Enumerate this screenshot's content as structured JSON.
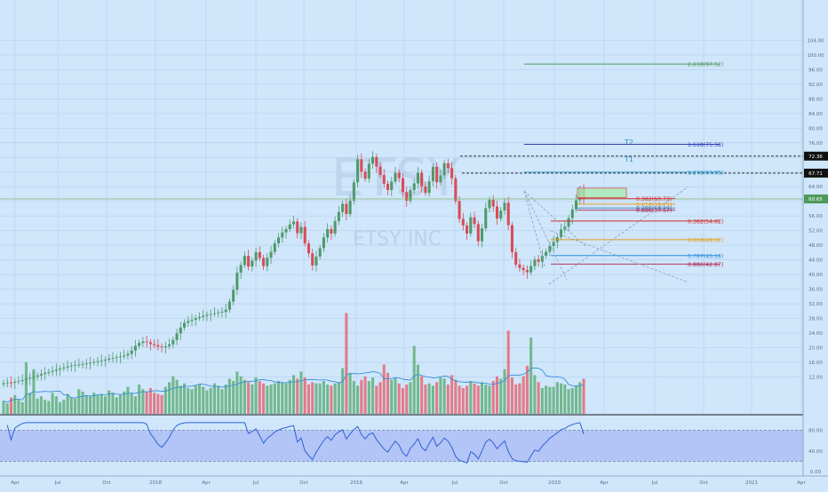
{
  "watermark": {
    "ticker": "ETSY",
    "name": "ETSY INC"
  },
  "colors": {
    "up": "#4f9a6a",
    "down": "#d94b57",
    "background": "#cfe6fb",
    "grid": "#b8d3ec",
    "ma": "#3a8fd6",
    "rsi": "#2f63d2",
    "rsi_band": "#a9b8f6"
  },
  "price_labels": [
    {
      "value": "72.36",
      "price": 72.36,
      "style": "dark"
    },
    {
      "value": "67.71",
      "price": 67.71,
      "style": "dark"
    },
    {
      "value": "60.65",
      "price": 60.65,
      "style": "green"
    }
  ],
  "chart_data": {
    "type": "candlestick",
    "axes": {
      "y_ticks": [
        "104.00",
        "100.00",
        "96.00",
        "92.00",
        "88.00",
        "84.00",
        "80.00",
        "76.00",
        "72.00",
        "68.00",
        "64.00",
        "60.00",
        "56.00",
        "52.00",
        "48.00",
        "44.00",
        "40.00",
        "36.00",
        "32.00",
        "28.00",
        "24.00",
        "20.00",
        "16.00",
        "12.00"
      ],
      "x_ticks": [
        "Apr",
        "Jul",
        "Oct",
        "2018",
        "Apr",
        "Jul",
        "Oct",
        "2019",
        "Apr",
        "Jul",
        "Oct",
        "2020",
        "Apr",
        "Jul",
        "Oct",
        "2021",
        "Apr"
      ],
      "rsi_ticks": [
        "80.00",
        "40.00",
        "0.00"
      ],
      "ylim": [
        8,
        106
      ]
    },
    "weekly_close": [
      10.3,
      10.5,
      10.4,
      10.7,
      10.9,
      11.2,
      11.5,
      11.8,
      12.1,
      12.4,
      12.8,
      13.1,
      13.4,
      13.7,
      14,
      14.3,
      14.6,
      14.9,
      15.1,
      15.3,
      15.4,
      15.5,
      15.7,
      15.9,
      16.1,
      16.3,
      16.5,
      16.7,
      17,
      17.2,
      17.4,
      17.6,
      17.9,
      18.3,
      19.2,
      20.5,
      21.3,
      21.7,
      21.5,
      21,
      20.7,
      20.3,
      20.1,
      20.4,
      20.9,
      22.1,
      23.9,
      25.5,
      26.8,
      27.3,
      27.6,
      28.1,
      28.4,
      28.7,
      29,
      29.2,
      29.4,
      29.6,
      29.8,
      30.4,
      32.6,
      35.8,
      40.5,
      42.6,
      45.1,
      42.2,
      43.8,
      46.1,
      44.5,
      42.3,
      44.6,
      46.2,
      48.5,
      50.1,
      51.5,
      52.4,
      53.7,
      54.5,
      51.3,
      53,
      48.5,
      45.8,
      42.5,
      44.9,
      47.2,
      50.1,
      52.4,
      51.2,
      54.6,
      57.1,
      59.3,
      56.5,
      60.2,
      65.2,
      71.5,
      68.1,
      66.2,
      70.3,
      72.1,
      69.5,
      67.2,
      64.8,
      63.1,
      65.4,
      67.8,
      66.3,
      62.5,
      60.2,
      63.1,
      64.9,
      67.8,
      64.1,
      62.3,
      65.5,
      69.4,
      65.2,
      67.1,
      70.4,
      69.1,
      66.3,
      60.1,
      55.2,
      53.4,
      51.2,
      55.6,
      53.8,
      49.1,
      52.6,
      58.1,
      60.4,
      58.6,
      55.3,
      57.5,
      59.6,
      53.5,
      46.1,
      42.7,
      41.8,
      41.2,
      40.6,
      42.3,
      44.1,
      43.5,
      45.1,
      46.2,
      47.8,
      48.9,
      50.2,
      52.3,
      53.1,
      55.4,
      57.8,
      60.3,
      63.4,
      60.7
    ],
    "weekly_volume": [
      1.1,
      0.9,
      1.4,
      1.6,
      1.2,
      1,
      4.4,
      1.8,
      3.8,
      1.3,
      1.5,
      1.2,
      1.1,
      1.8,
      1.5,
      1,
      1.2,
      1.7,
      1.4,
      1.3,
      2.1,
      1.9,
      1.6,
      1.5,
      1.8,
      1.6,
      1.7,
      1.5,
      2,
      1.8,
      1.4,
      1.6,
      1.9,
      2.3,
      1.8,
      1.5,
      2.5,
      2.1,
      1.9,
      2.2,
      1.8,
      1.7,
      1.6,
      2.3,
      2.7,
      3.2,
      2.9,
      2.4,
      2.6,
      2.2,
      2.1,
      2.4,
      2.5,
      2.3,
      2,
      2.2,
      2.6,
      2.4,
      2.1,
      2.5,
      3,
      2.8,
      3.6,
      3.2,
      2.9,
      2.7,
      2.5,
      3.1,
      2.8,
      2.6,
      2.4,
      2.5,
      2.6,
      2.8,
      2.7,
      2.6,
      2.9,
      3.3,
      3,
      3.6,
      3.1,
      2.5,
      2.7,
      2.6,
      2.6,
      2.8,
      2.5,
      2.4,
      2.6,
      2.7,
      3.9,
      8.6,
      3.5,
      2.8,
      2.4,
      2.9,
      3.2,
      2.8,
      3.1,
      2.4,
      2.7,
      4.2,
      3.5,
      2.9,
      3.1,
      2.6,
      2.2,
      2.5,
      2.7,
      5.8,
      4.2,
      3.2,
      2.5,
      2.6,
      2.4,
      2.7,
      3.1,
      3,
      2.5,
      3.3,
      2.9,
      2.4,
      2.2,
      2.4,
      2.8,
      2.6,
      2.4,
      2.7,
      2.5,
      2.4,
      2.8,
      3.2,
      3,
      3.8,
      7.1,
      3.1,
      2.5,
      2.6,
      3.2,
      4.1,
      6.5,
      3.3,
      2.7,
      2.2,
      2.4,
      2.3,
      2.3,
      2.7,
      2.6,
      2.5,
      2.1,
      2.2,
      2.4,
      2.7,
      3,
      3.5,
      5.3,
      3.4
    ]
  },
  "fib_levels": [
    {
      "label": "2.618(97.52)",
      "price": 97.52,
      "color": "#4f9a5a",
      "x0": 590,
      "x1": 810
    },
    {
      "label": "1.618(75.58)",
      "price": 75.58,
      "color": "#2f3fb8",
      "x0": 590,
      "x1": 810
    },
    {
      "label": "1.272(67.99)",
      "price": 67.99,
      "color": "#2f9fcf",
      "x0": 590,
      "x1": 810
    },
    {
      "label": "0.382(60.73)",
      "price": 60.73,
      "color": "#d02a2a",
      "x0": 650,
      "x1": 760
    },
    {
      "label": "0.618(59.25)",
      "price": 59.25,
      "color": "#e89a18",
      "x0": 650,
      "x1": 760
    },
    {
      "label": "0.786(58.19)",
      "price": 58.19,
      "color": "#3a7fbf",
      "x0": 650,
      "x1": 760
    },
    {
      "label": "0.886(57.57)",
      "price": 57.57,
      "color": "#b01f4a",
      "x0": 650,
      "x1": 760
    },
    {
      "label": "0.382(54.62)",
      "price": 54.62,
      "color": "#d02a2a",
      "x0": 620,
      "x1": 810
    },
    {
      "label": "0.618(49.52)",
      "price": 49.52,
      "color": "#e89a18",
      "x0": 620,
      "x1": 810
    },
    {
      "label": "0.787(45.18)",
      "price": 45.18,
      "color": "#2f8fd8",
      "x0": 620,
      "x1": 810
    },
    {
      "label": "0.886(42.87)",
      "price": 42.87,
      "color": "#b01f4a",
      "x0": 620,
      "x1": 810
    }
  ],
  "targets": [
    {
      "label": "T2",
      "price": 72.36
    },
    {
      "label": "T1",
      "price": 67.71
    }
  ],
  "target_box": {
    "top": 63.6,
    "bottom": 61.0,
    "x0": 650,
    "x1": 705
  }
}
